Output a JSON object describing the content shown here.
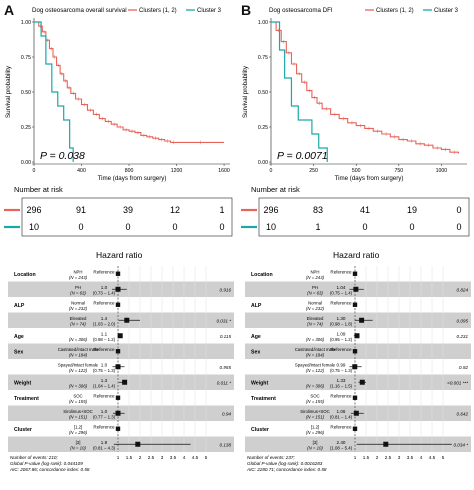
{
  "panels": [
    {
      "letter": "A",
      "km": {
        "title": "Dog osteosarcoma overall survival",
        "legend": [
          "Clusters (1, 2)",
          "Cluster 3"
        ],
        "ylabel": "Survival probability",
        "xlabel": "Time (days from surgery)",
        "xticks": [
          "0",
          "400",
          "800",
          "1200",
          "1600"
        ],
        "yticks": [
          "0.00",
          "0.25",
          "0.50",
          "0.75",
          "1.00"
        ],
        "pvalue": "P = 0.038"
      },
      "risk": {
        "title": "Number at risk",
        "rows": [
          [
            "296",
            "91",
            "39",
            "12",
            "1"
          ],
          [
            "10",
            "0",
            "0",
            "0",
            "0"
          ]
        ]
      },
      "forest": {
        "title": "Hazard ratio",
        "rows": [
          {
            "variable": "Location",
            "level": "NPH",
            "n": "(N = 243)",
            "hr": "Reference",
            "ci": "",
            "p": ""
          },
          {
            "variable": "",
            "level": "PH",
            "n": "(N = 63)",
            "hr": "1.0",
            "ci": "(0.73 − 1.4)",
            "p": "0.916"
          },
          {
            "variable": "ALP",
            "level": "Normal",
            "n": "(N = 232)",
            "hr": "Reference",
            "ci": "",
            "p": ""
          },
          {
            "variable": "",
            "level": "Elevated",
            "n": "(N = 74)",
            "hr": "1.4",
            "ci": "(1.03 − 2.0)",
            "p": "0.031 *"
          },
          {
            "variable": "Age",
            "level": "",
            "n": "(N = 306)",
            "hr": "1.1",
            "ci": "(0.98 − 1.2)",
            "p": "0.115"
          },
          {
            "variable": "Sex",
            "level": "Castrated/intact male",
            "n": "(N = 184)",
            "hr": "Reference",
            "ci": "",
            "p": ""
          },
          {
            "variable": "",
            "level": "Spayed/intact female",
            "n": "(N = 122)",
            "hr": "1.0",
            "ci": "(0.75 − 1.3)",
            "p": "0.955"
          },
          {
            "variable": "Weight",
            "level": "",
            "n": "(N = 306)",
            "hr": "1.3",
            "ci": "(1.04 − 1.4)",
            "p": "0.011 *"
          },
          {
            "variable": "Treatment",
            "level": "SOC",
            "n": "(N = 155)",
            "hr": "Reference",
            "ci": "",
            "p": ""
          },
          {
            "variable": "",
            "level": "Sirolimus+SOC",
            "n": "(N = 151)",
            "hr": "1.0",
            "ci": "(0.77 − 1.3)",
            "p": "0.94"
          },
          {
            "variable": "Cluster",
            "level": "[1,2]",
            "n": "(N = 296)",
            "hr": "Reference",
            "ci": "",
            "p": ""
          },
          {
            "variable": "",
            "level": "[3]",
            "n": "(N = 10)",
            "hr": "1.9",
            "ci": "(0.81 − 4.3)",
            "p": "0.138"
          }
        ],
        "axis_ticks": [
          "1",
          "1.5",
          "2",
          "2.5",
          "3",
          "3.5",
          "4",
          "4.5",
          "5"
        ],
        "footnotes": [
          "Number of events: 210;",
          "Global P-value (log-rank): 0.044109",
          "AIC: 2067.86; concordance index: 0.58"
        ]
      }
    },
    {
      "letter": "B",
      "km": {
        "title": "Dog osteosarcoma DFI",
        "legend": [
          "Clusters (1, 2)",
          "Cluster 3"
        ],
        "ylabel": "Survival probability",
        "xlabel": "Time (days from surgery)",
        "xticks": [
          "0",
          "250",
          "500",
          "750",
          "1000"
        ],
        "yticks": [
          "0.00",
          "0.25",
          "0.50",
          "0.75",
          "1.00"
        ],
        "pvalue": "P = 0.0071"
      },
      "risk": {
        "title": "Number at risk",
        "rows": [
          [
            "296",
            "83",
            "41",
            "19",
            "0"
          ],
          [
            "10",
            "1",
            "0",
            "0",
            "0"
          ]
        ]
      },
      "forest": {
        "title": "Hazard ratio",
        "rows": [
          {
            "variable": "Location",
            "level": "NPH",
            "n": "(N = 243)",
            "hr": "Reference",
            "ci": "",
            "p": ""
          },
          {
            "variable": "",
            "level": "PH",
            "n": "(N = 63)",
            "hr": "1.04",
            "ci": "(0.75 − 1.4)",
            "p": "0.824"
          },
          {
            "variable": "ALP",
            "level": "Normal",
            "n": "(N = 232)",
            "hr": "Reference",
            "ci": "",
            "p": ""
          },
          {
            "variable": "",
            "level": "Elevated",
            "n": "(N = 74)",
            "hr": "1.30",
            "ci": "(0.98 − 1.8)",
            "p": "0.095"
          },
          {
            "variable": "Age",
            "level": "",
            "n": "(N = 306)",
            "hr": "1.09",
            "ci": "(0.95 − 1.2)",
            "p": "0.231"
          },
          {
            "variable": "Sex",
            "level": "Castrated/intact male",
            "n": "(N = 184)",
            "hr": "Reference",
            "ci": "",
            "p": ""
          },
          {
            "variable": "",
            "level": "Spayed/intact female",
            "n": "(N = 122)",
            "hr": "0.99",
            "ci": "(0.75 − 1.3)",
            "p": "0.92"
          },
          {
            "variable": "Weight",
            "level": "",
            "n": "(N = 306)",
            "hr": "1.33",
            "ci": "(1.16 − 1.5)",
            "p": "<0.001 ***"
          },
          {
            "variable": "Treatment",
            "level": "SOC",
            "n": "(N = 155)",
            "hr": "Reference",
            "ci": "",
            "p": ""
          },
          {
            "variable": "",
            "level": "Sirolimus+SOC",
            "n": "(N = 151)",
            "hr": "1.06",
            "ci": "(0.81 − 1.4)",
            "p": "0.642"
          },
          {
            "variable": "Cluster",
            "level": "[1,2]",
            "n": "(N = 296)",
            "hr": "Reference",
            "ci": "",
            "p": ""
          },
          {
            "variable": "",
            "level": "[3]",
            "n": "(N = 10)",
            "hr": "2.40",
            "ci": "(1.08 − 5.4)",
            "p": "0.034 *"
          }
        ],
        "axis_ticks": [
          "1",
          "1.5",
          "2",
          "2.5",
          "3",
          "3.5",
          "4",
          "4.5",
          "5"
        ],
        "footnotes": [
          "Number of events: 237;",
          "Global P-value (log-rank): 0.0016283",
          "AIC: 2280.71; concordance index: 0.58"
        ]
      }
    }
  ],
  "chart_data": [
    {
      "type": "line",
      "title": "Dog osteosarcoma overall survival",
      "xlabel": "Time (days from surgery)",
      "ylabel": "Survival probability",
      "xlim": [
        0,
        1650
      ],
      "ylim": [
        0,
        1
      ],
      "pvalue": "P = 0.038",
      "series": [
        {
          "name": "Clusters (1, 2)",
          "color": "#e8645a",
          "x": [
            0,
            40,
            70,
            100,
            130,
            160,
            190,
            220,
            250,
            280,
            310,
            350,
            400,
            450,
            500,
            550,
            600,
            650,
            700,
            750,
            800,
            850,
            900,
            950,
            1000,
            1050,
            1100,
            1150,
            1200,
            1600
          ],
          "y": [
            1.0,
            0.97,
            0.93,
            0.87,
            0.81,
            0.75,
            0.69,
            0.63,
            0.58,
            0.53,
            0.49,
            0.45,
            0.41,
            0.37,
            0.34,
            0.31,
            0.29,
            0.27,
            0.25,
            0.23,
            0.22,
            0.21,
            0.19,
            0.18,
            0.17,
            0.16,
            0.15,
            0.14,
            0.14,
            0.14
          ]
        },
        {
          "name": "Cluster 3",
          "color": "#1aa9a5",
          "x": [
            0,
            60,
            100,
            150,
            200,
            250,
            300,
            330
          ],
          "y": [
            1.0,
            0.9,
            0.7,
            0.5,
            0.4,
            0.3,
            0.1,
            0.0
          ]
        }
      ]
    },
    {
      "type": "line",
      "title": "Dog osteosarcoma DFI",
      "xlabel": "Time (days from surgery)",
      "ylabel": "Survival probability",
      "xlim": [
        0,
        1150
      ],
      "ylim": [
        0,
        1
      ],
      "pvalue": "P = 0.0071",
      "series": [
        {
          "name": "Clusters (1, 2)",
          "color": "#e8645a",
          "x": [
            0,
            30,
            60,
            90,
            120,
            150,
            180,
            210,
            240,
            270,
            300,
            350,
            400,
            450,
            500,
            550,
            600,
            650,
            700,
            750,
            800,
            850,
            900,
            950,
            1000,
            1050,
            1100
          ],
          "y": [
            1.0,
            0.94,
            0.86,
            0.78,
            0.7,
            0.63,
            0.57,
            0.51,
            0.46,
            0.42,
            0.38,
            0.34,
            0.31,
            0.28,
            0.26,
            0.24,
            0.22,
            0.2,
            0.18,
            0.16,
            0.15,
            0.13,
            0.12,
            0.1,
            0.09,
            0.07,
            0.06
          ]
        },
        {
          "name": "Cluster 3",
          "color": "#1aa9a5",
          "x": [
            0,
            50,
            80,
            120,
            160,
            200,
            240,
            280,
            330
          ],
          "y": [
            1.0,
            0.8,
            0.6,
            0.4,
            0.3,
            0.3,
            0.2,
            0.1,
            0.0
          ]
        }
      ]
    },
    {
      "type": "scatter",
      "title": "Hazard ratio",
      "xlim": [
        0.5,
        5.2
      ],
      "categories": [
        "Location PH",
        "ALP Elevated",
        "Age",
        "Sex Spayed/intact female",
        "Weight",
        "Treatment Sirolimus+SOC",
        "Cluster [3]"
      ],
      "series": [
        {
          "name": "",
          "hr": [
            1.0,
            1.4,
            1.1,
            1.0,
            1.3,
            1.0,
            1.9
          ],
          "ci_low": [
            0.73,
            1.03,
            0.98,
            0.75,
            1.04,
            0.77,
            0.81
          ],
          "ci_high": [
            1.4,
            2.0,
            1.2,
            1.3,
            1.4,
            1.3,
            4.3
          ]
        }
      ]
    },
    {
      "type": "scatter",
      "title": "Hazard ratio",
      "xlim": [
        0.5,
        5.2
      ],
      "categories": [
        "Location PH",
        "ALP Elevated",
        "Age",
        "Sex Spayed/intact female",
        "Weight",
        "Treatment Sirolimus+SOC",
        "Cluster [3]"
      ],
      "series": [
        {
          "name": "",
          "hr": [
            1.04,
            1.3,
            1.09,
            0.99,
            1.33,
            1.06,
            2.4
          ],
          "ci_low": [
            0.75,
            0.98,
            0.95,
            0.75,
            1.16,
            0.81,
            1.08
          ],
          "ci_high": [
            1.4,
            1.8,
            1.2,
            1.3,
            1.5,
            1.4,
            5.4
          ]
        }
      ]
    }
  ]
}
